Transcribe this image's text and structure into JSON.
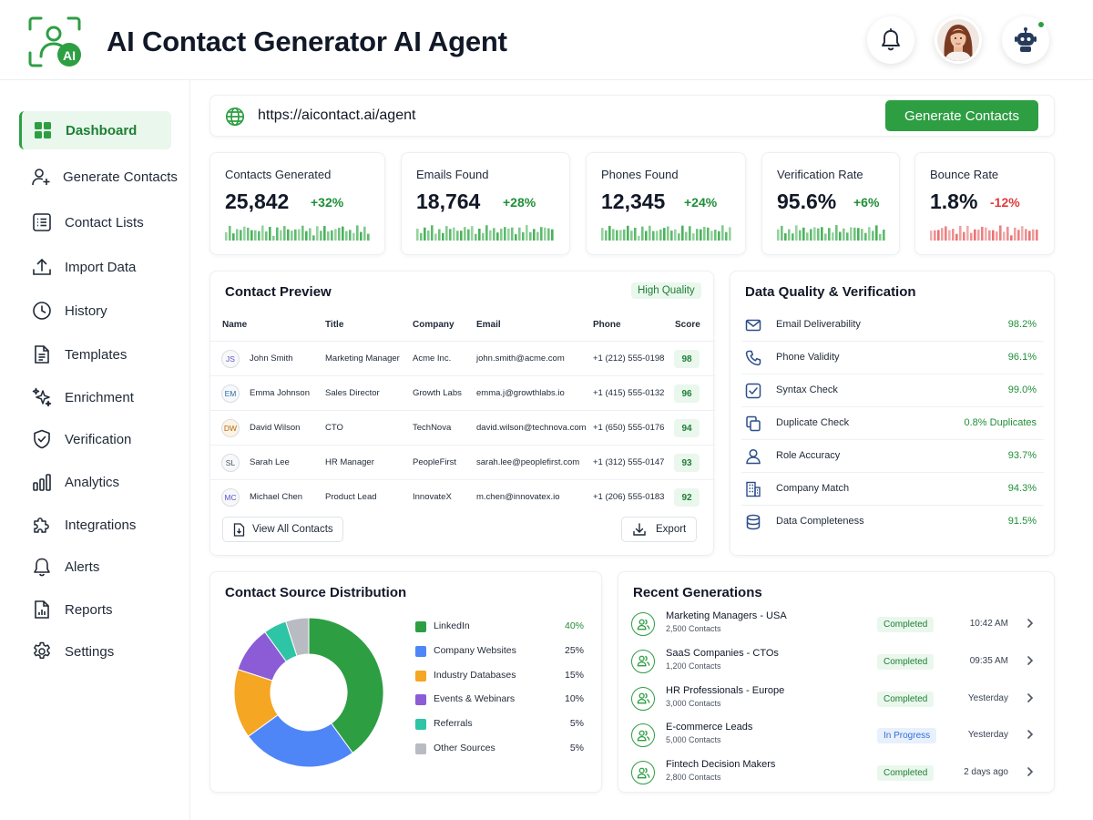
{
  "header": {
    "logo_text": "AI",
    "title": "AI Contact Generator AI Agent"
  },
  "sidebar": {
    "items": [
      {
        "label": "Dashboard",
        "icon": "grid-icon",
        "active": true
      },
      {
        "label": "Generate Contacts",
        "icon": "user-plus-icon"
      },
      {
        "label": "Contact Lists",
        "icon": "list-icon"
      },
      {
        "label": "Import Data",
        "icon": "upload-icon"
      },
      {
        "label": "History",
        "icon": "clock-icon"
      },
      {
        "label": "Templates",
        "icon": "document-icon"
      },
      {
        "label": "Enrichment",
        "icon": "sparkles-icon"
      },
      {
        "label": "Verification",
        "icon": "shield-check-icon"
      },
      {
        "label": "Analytics",
        "icon": "bar-chart-icon"
      },
      {
        "label": "Integrations",
        "icon": "puzzle-icon"
      },
      {
        "label": "Alerts",
        "icon": "bell-icon"
      },
      {
        "label": "Reports",
        "icon": "report-icon"
      },
      {
        "label": "Settings",
        "icon": "gear-icon"
      }
    ]
  },
  "url_bar": {
    "url": "https://aicontact.ai/agent",
    "button_label": "Generate Contacts"
  },
  "stats": [
    {
      "label": "Contacts Generated",
      "value": "25,842",
      "change": "+32%",
      "trend": "up"
    },
    {
      "label": "Emails Found",
      "value": "18,764",
      "change": "+28%",
      "trend": "up"
    },
    {
      "label": "Phones Found",
      "value": "12,345",
      "change": "+24%",
      "trend": "up"
    },
    {
      "label": "Verification Rate",
      "value": "95.6%",
      "change": "+6%",
      "trend": "up"
    },
    {
      "label": "Bounce Rate",
      "value": "1.8%",
      "change": "-12%",
      "trend": "down"
    }
  ],
  "contact_preview": {
    "title": "Contact Preview",
    "badge": "High Quality",
    "columns": [
      "Name",
      "Title",
      "Company",
      "Email",
      "Phone",
      "Score"
    ],
    "rows": [
      {
        "initials": "JS",
        "name": "John Smith",
        "title": "Marketing Manager",
        "company": "Acme Inc.",
        "email": "john.smith@acme.com",
        "phone": "+1 (212) 555-0198",
        "score": "98"
      },
      {
        "initials": "EM",
        "name": "Emma Johnson",
        "title": "Sales Director",
        "company": "Growth Labs",
        "email": "emma.j@growthlabs.io",
        "phone": "+1 (415) 555-0132",
        "score": "96"
      },
      {
        "initials": "DW",
        "name": "David Wilson",
        "title": "CTO",
        "company": "TechNova",
        "email": "david.wilson@technova.com",
        "phone": "+1 (650) 555-0176",
        "score": "94"
      },
      {
        "initials": "SL",
        "name": "Sarah Lee",
        "title": "HR Manager",
        "company": "PeopleFirst",
        "email": "sarah.lee@peoplefirst.com",
        "phone": "+1 (312) 555-0147",
        "score": "93"
      },
      {
        "initials": "MC",
        "name": "Michael Chen",
        "title": "Product Lead",
        "company": "InnovateX",
        "email": "m.chen@innovatex.io",
        "phone": "+1 (206) 555-0183",
        "score": "92"
      }
    ],
    "view_all_label": "View All Contacts",
    "export_label": "Export"
  },
  "data_quality": {
    "title": "Data Quality & Verification",
    "items": [
      {
        "label": "Email Deliverability",
        "value": "98.2%",
        "icon": "mail-icon"
      },
      {
        "label": "Phone Validity",
        "value": "96.1%",
        "icon": "phone-icon"
      },
      {
        "label": "Syntax Check",
        "value": "99.0%",
        "icon": "check-square-icon"
      },
      {
        "label": "Duplicate Check",
        "value": "0.8% Duplicates",
        "icon": "copy-icon"
      },
      {
        "label": "Role Accuracy",
        "value": "93.7%",
        "icon": "user-icon"
      },
      {
        "label": "Company Match",
        "value": "94.3%",
        "icon": "building-icon"
      },
      {
        "label": "Data Completeness",
        "value": "91.5%",
        "icon": "database-icon"
      }
    ]
  },
  "source_distribution": {
    "title": "Contact Source Distribution"
  },
  "chart_data": {
    "type": "pie",
    "title": "Contact Source Distribution",
    "donut": true,
    "slices": [
      {
        "name": "LinkedIn",
        "value": 40,
        "label": "40%",
        "color": "#2e9e43"
      },
      {
        "name": "Company Websites",
        "value": 25,
        "label": "25%",
        "color": "#4f86f7"
      },
      {
        "name": "Industry Databases",
        "value": 15,
        "label": "15%",
        "color": "#f5a623"
      },
      {
        "name": "Events & Webinars",
        "value": 10,
        "label": "10%",
        "color": "#8b5cd6"
      },
      {
        "name": "Referrals",
        "value": 5,
        "label": "5%",
        "color": "#2ec4a6"
      },
      {
        "name": "Other Sources",
        "value": 5,
        "label": "5%",
        "color": "#b8bcc2"
      }
    ]
  },
  "recent_generations": {
    "title": "Recent Generations",
    "items": [
      {
        "name": "Marketing Managers - USA",
        "count": "2,500 Contacts",
        "status": "Completed",
        "time": "10:42 AM"
      },
      {
        "name": "SaaS Companies - CTOs",
        "count": "1,200 Contacts",
        "status": "Completed",
        "time": "09:35 AM"
      },
      {
        "name": "HR Professionals - Europe",
        "count": "3,000 Contacts",
        "status": "Completed",
        "time": "Yesterday"
      },
      {
        "name": "E-commerce Leads",
        "count": "5,000 Contacts",
        "status": "In Progress",
        "time": "Yesterday"
      },
      {
        "name": "Fintech Decision Makers",
        "count": "2,800 Contacts",
        "status": "Completed",
        "time": "2 days ago"
      }
    ]
  },
  "colors": {
    "accent": "#2e9e43",
    "positive": "#1e8f37",
    "negative": "#e03b3b",
    "in_progress": "#2f6fd6"
  }
}
